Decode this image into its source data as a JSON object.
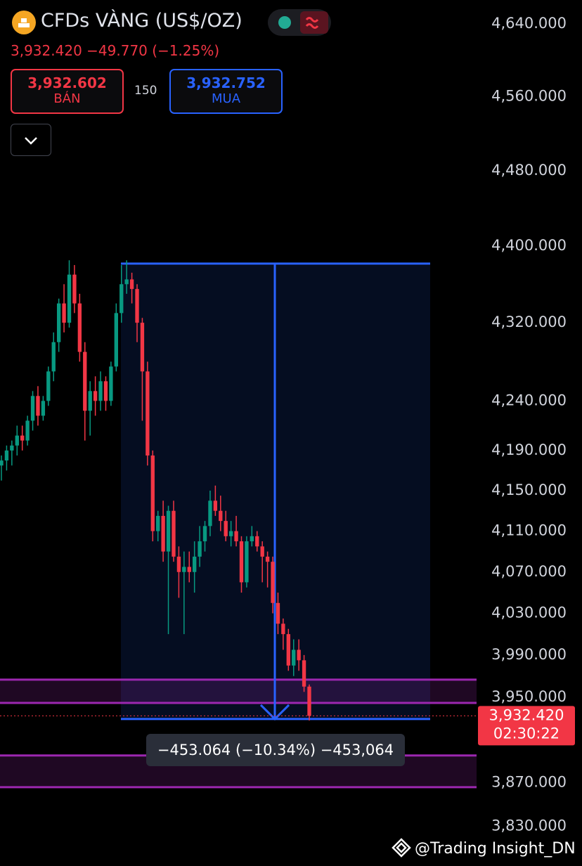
{
  "chart_data": {
    "type": "candlestick",
    "title": "CFDs VÀNG (US$/OZ)",
    "quote": {
      "change": "−49.770",
      "change_pct": "(−1.25%)"
    },
    "sell": {
      "price": "3,932.602",
      "label": "BÁN"
    },
    "spread": "150",
    "buy": {
      "price": "3,932.752",
      "label": "MUA"
    },
    "last": {
      "value": 3932.42,
      "label": "3,932.420",
      "countdown": "02:30:22"
    },
    "log_scale": true,
    "grid": false,
    "up_color": "#089981",
    "down_color": "#f23645",
    "ylim": [
      3793.7,
      4666.6
    ],
    "yticks": [
      {
        "value": 4640,
        "label": "4,640.000"
      },
      {
        "value": 4560,
        "label": "4,560.000"
      },
      {
        "value": 4480,
        "label": "4,480.000"
      },
      {
        "value": 4400,
        "label": "4,400.000"
      },
      {
        "value": 4320,
        "label": "4,320.000"
      },
      {
        "value": 4240,
        "label": "4,240.000"
      },
      {
        "value": 4190,
        "label": "4,190.000"
      },
      {
        "value": 4150,
        "label": "4,150.000"
      },
      {
        "value": 4110,
        "label": "4,110.000"
      },
      {
        "value": 4070,
        "label": "4,070.000"
      },
      {
        "value": 4030,
        "label": "4,030.000"
      },
      {
        "value": 3990,
        "label": "3,990.000"
      },
      {
        "value": 3950,
        "label": "3,950.000"
      },
      {
        "value": 3870,
        "label": "3,870.000"
      },
      {
        "value": 3830,
        "label": "3,830.000"
      }
    ],
    "ohlc": [
      [
        4175,
        4185,
        4160,
        4180
      ],
      [
        4180,
        4195,
        4170,
        4190
      ],
      [
        4190,
        4200,
        4175,
        4195
      ],
      [
        4195,
        4215,
        4185,
        4205
      ],
      [
        4205,
        4215,
        4190,
        4200
      ],
      [
        4200,
        4225,
        4195,
        4220
      ],
      [
        4220,
        4250,
        4210,
        4245
      ],
      [
        4245,
        4255,
        4215,
        4225
      ],
      [
        4225,
        4245,
        4220,
        4240
      ],
      [
        4240,
        4275,
        4235,
        4270
      ],
      [
        4270,
        4310,
        4260,
        4300
      ],
      [
        4300,
        4345,
        4290,
        4340
      ],
      [
        4340,
        4360,
        4310,
        4320
      ],
      [
        4320,
        4385,
        4315,
        4370
      ],
      [
        4370,
        4380,
        4330,
        4340
      ],
      [
        4340,
        4350,
        4280,
        4290
      ],
      [
        4290,
        4300,
        4200,
        4230
      ],
      [
        4230,
        4260,
        4205,
        4250
      ],
      [
        4250,
        4265,
        4225,
        4240
      ],
      [
        4240,
        4270,
        4230,
        4260
      ],
      [
        4260,
        4265,
        4230,
        4240
      ],
      [
        4240,
        4280,
        4235,
        4275
      ],
      [
        4275,
        4340,
        4270,
        4330
      ],
      [
        4330,
        4380,
        4320,
        4360
      ],
      [
        4360,
        4385,
        4350,
        4365
      ],
      [
        4365,
        4372,
        4340,
        4355
      ],
      [
        4355,
        4360,
        4300,
        4320
      ],
      [
        4320,
        4325,
        4220,
        4270
      ],
      [
        4270,
        4280,
        4175,
        4185
      ],
      [
        4185,
        4190,
        4100,
        4110
      ],
      [
        4110,
        4130,
        4100,
        4125
      ],
      [
        4125,
        4140,
        4080,
        4090
      ],
      [
        4090,
        4135,
        4010,
        4130
      ],
      [
        4130,
        4140,
        4080,
        4085
      ],
      [
        4085,
        4095,
        4045,
        4070
      ],
      [
        4070,
        4090,
        4010,
        4075
      ],
      [
        4075,
        4090,
        4060,
        4070
      ],
      [
        4070,
        4100,
        4050,
        4085
      ],
      [
        4085,
        4115,
        4075,
        4100
      ],
      [
        4100,
        4120,
        4090,
        4115
      ],
      [
        4115,
        4150,
        4105,
        4140
      ],
      [
        4140,
        4155,
        4125,
        4130
      ],
      [
        4130,
        4145,
        4110,
        4120
      ],
      [
        4120,
        4130,
        4100,
        4105
      ],
      [
        4105,
        4120,
        4095,
        4110
      ],
      [
        4110,
        4125,
        4095,
        4100
      ],
      [
        4100,
        4105,
        4050,
        4060
      ],
      [
        4060,
        4105,
        4055,
        4100
      ],
      [
        4100,
        4115,
        4095,
        4105
      ],
      [
        4105,
        4110,
        4090,
        4095
      ],
      [
        4095,
        4100,
        4060,
        4085
      ],
      [
        4085,
        4090,
        4055,
        4080
      ],
      [
        4080,
        4085,
        4030,
        4040
      ],
      [
        4040,
        4050,
        4010,
        4020
      ],
      [
        4020,
        4025,
        3995,
        4010
      ],
      [
        4010,
        4015,
        3975,
        3980
      ],
      [
        3980,
        4005,
        3970,
        3995
      ],
      [
        3995,
        4005,
        3975,
        3985
      ],
      [
        3985,
        3990,
        3955,
        3960
      ],
      [
        3960,
        3962,
        3928,
        3932.42
      ]
    ],
    "zones": [
      [
        3966.6,
        3944.6
      ],
      [
        3895.3,
        3865.9
      ]
    ],
    "measure": {
      "from": 4381.5,
      "to": 3929.4,
      "label": "−453.064 (−10.34%) −453,064"
    },
    "watermark": "@Trading Insight_DN"
  }
}
